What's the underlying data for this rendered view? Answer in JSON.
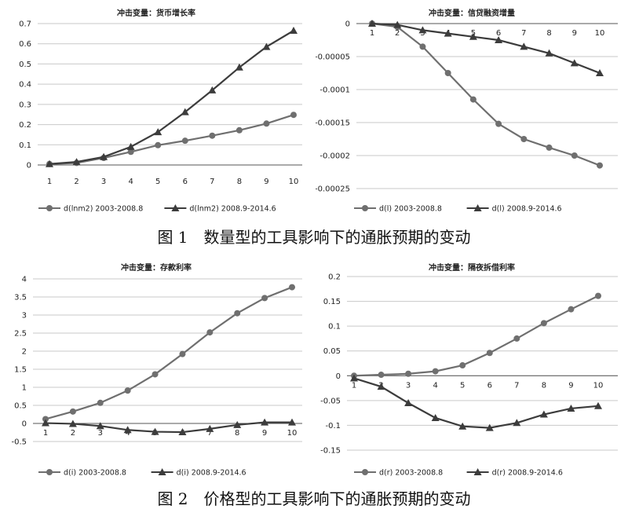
{
  "figures": [
    {
      "caption": "图 1　数量型的工具影响下的通胀预期的变动"
    },
    {
      "caption": "图 2　价格型的工具影响下的通胀预期的变动"
    }
  ],
  "chart_data": [
    {
      "type": "line",
      "title": "冲击变量：货币增长率",
      "x": [
        1,
        2,
        3,
        4,
        5,
        6,
        7,
        8,
        9,
        10
      ],
      "ylim": [
        0,
        0.7
      ],
      "yticks": [
        0,
        0.1,
        0.2,
        0.3,
        0.4,
        0.5,
        0.6,
        0.7
      ],
      "ytick_labels": [
        "0",
        "0.1",
        "0.2",
        "0.3",
        "0.4",
        "0.5",
        "0.6",
        "0.7"
      ],
      "xaxis_position": "bottom",
      "grid": true,
      "legend": "bottom",
      "series": [
        {
          "name": "d(lnm2) 2003-2008.8",
          "marker": "circle",
          "values": [
            0.005,
            0.01,
            0.035,
            0.065,
            0.098,
            0.12,
            0.145,
            0.172,
            0.205,
            0.248
          ]
        },
        {
          "name": "d(lnm2) 2008.9-2014.6",
          "marker": "triangle",
          "values": [
            0.005,
            0.015,
            0.04,
            0.09,
            0.163,
            0.262,
            0.37,
            0.483,
            0.585,
            0.665
          ]
        }
      ]
    },
    {
      "type": "line",
      "title": "冲击变量：信贷融资增量",
      "x": [
        1,
        2,
        3,
        4,
        5,
        6,
        7,
        8,
        9,
        10
      ],
      "ylim": [
        -0.00025,
        0
      ],
      "yticks": [
        0,
        -5e-05,
        -0.0001,
        -0.00015,
        -0.0002,
        -0.00025
      ],
      "ytick_labels": [
        "0",
        "-0.00005",
        "-0.0001",
        "-0.00015",
        "-0.0002",
        "-0.00025"
      ],
      "xaxis_position": "zero",
      "grid": true,
      "legend": "bottom",
      "series": [
        {
          "name": "d(l) 2003-2008.8",
          "marker": "circle",
          "values": [
            0,
            -5e-06,
            -3.5e-05,
            -7.5e-05,
            -0.000115,
            -0.000152,
            -0.000175,
            -0.000188,
            -0.0002,
            -0.000215
          ]
        },
        {
          "name": "d(l) 2008.9-2014.6",
          "marker": "triangle",
          "values": [
            0,
            -2e-06,
            -1e-05,
            -1.5e-05,
            -2e-05,
            -2.5e-05,
            -3.5e-05,
            -4.5e-05,
            -6e-05,
            -7.5e-05
          ]
        }
      ]
    },
    {
      "type": "line",
      "title": "冲击变量：存款利率",
      "x": [
        1,
        2,
        3,
        4,
        5,
        6,
        7,
        8,
        9,
        10
      ],
      "ylim": [
        -0.5,
        4
      ],
      "yticks": [
        -0.5,
        0,
        0.5,
        1,
        1.5,
        2,
        2.5,
        3,
        3.5,
        4
      ],
      "ytick_labels": [
        "-0.5",
        "0",
        "0.5",
        "1",
        "1.5",
        "2",
        "2.5",
        "3",
        "3.5",
        "4"
      ],
      "xaxis_position": "zero",
      "grid": true,
      "legend": "bottom",
      "series": [
        {
          "name": "d(i) 2003-2008.8",
          "marker": "circle",
          "values": [
            0.12,
            0.33,
            0.57,
            0.91,
            1.36,
            1.92,
            2.52,
            3.05,
            3.47,
            3.77
          ]
        },
        {
          "name": "d(i) 2008.9-2014.6",
          "marker": "triangle",
          "values": [
            0.01,
            -0.01,
            -0.07,
            -0.18,
            -0.23,
            -0.24,
            -0.15,
            -0.04,
            0.03,
            0.03
          ]
        }
      ]
    },
    {
      "type": "line",
      "title": "冲击变量：隔夜拆借利率",
      "x": [
        1,
        2,
        3,
        4,
        5,
        6,
        7,
        8,
        9,
        10
      ],
      "ylim": [
        -0.15,
        0.2
      ],
      "yticks": [
        -0.15,
        -0.1,
        -0.05,
        0,
        0.05,
        0.1,
        0.15,
        0.2
      ],
      "ytick_labels": [
        "-0.15",
        "-0.1",
        "-0.05",
        "0",
        "0.05",
        "0.1",
        "0.15",
        "0.2"
      ],
      "xaxis_position": "zero",
      "grid": true,
      "legend": "bottom",
      "series": [
        {
          "name": "d(r) 2003-2008.8",
          "marker": "circle",
          "values": [
            0,
            0.002,
            0.004,
            0.009,
            0.021,
            0.046,
            0.075,
            0.106,
            0.134,
            0.161
          ]
        },
        {
          "name": "d(r) 2008.9-2014.6",
          "marker": "triangle",
          "values": [
            -0.005,
            -0.022,
            -0.055,
            -0.085,
            -0.102,
            -0.105,
            -0.095,
            -0.078,
            -0.066,
            -0.061
          ]
        }
      ]
    }
  ]
}
